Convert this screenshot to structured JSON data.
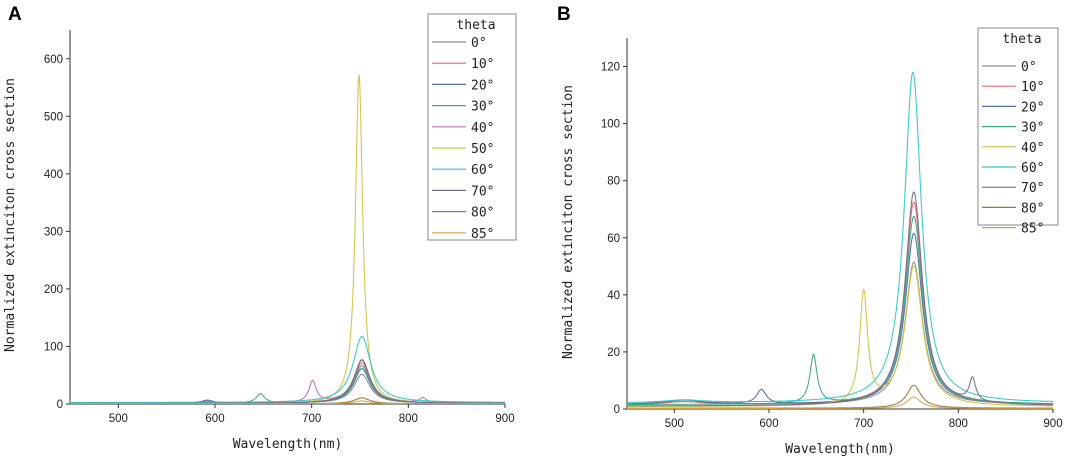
{
  "chart_data": [
    {
      "panel_label": "A",
      "type": "line",
      "xlabel": "Wavelength(nm)",
      "ylabel": "Normalized extinciton cross section",
      "xlim": [
        450,
        900
      ],
      "ylim": [
        0,
        650
      ],
      "xticks": [
        500,
        600,
        700,
        800,
        900
      ],
      "yticks": [
        0,
        100,
        200,
        300,
        400,
        500,
        600
      ],
      "legend_title": "theta",
      "legend_position": "top-right",
      "series": [
        {
          "name": "0°",
          "color": "#8c8c8c",
          "base": 1.5,
          "peaks": [
            {
              "x": 752,
              "h": 50,
              "w": 10
            },
            {
              "x": 592,
              "h": 3,
              "w": 7
            }
          ]
        },
        {
          "name": "10°",
          "color": "#e06b6b",
          "base": 1.5,
          "peaks": [
            {
              "x": 752,
              "h": 70,
              "w": 10
            },
            {
              "x": 592,
              "h": 2,
              "w": 7
            }
          ]
        },
        {
          "name": "20°",
          "color": "#4a6f9e",
          "base": 1.5,
          "peaks": [
            {
              "x": 752,
              "h": 60,
              "w": 10
            },
            {
              "x": 592,
              "h": 5,
              "w": 7
            }
          ]
        },
        {
          "name": "30°",
          "color": "#3aa98a",
          "base": 1.5,
          "peaks": [
            {
              "x": 752,
              "h": 65,
              "w": 10
            },
            {
              "x": 647,
              "h": 16,
              "w": 5
            }
          ]
        },
        {
          "name": "40°",
          "color": "#c26fb3",
          "base": 1.5,
          "peaks": [
            {
              "x": 752,
              "h": 74,
              "w": 10
            },
            {
              "x": 701,
              "h": 37,
              "w": 4.5
            },
            {
              "x": 815,
              "h": 8,
              "w": 4
            }
          ]
        },
        {
          "name": "50°",
          "color": "#d1c441",
          "base": 0.5,
          "peaks": [
            {
              "x": 749,
              "h": 572,
              "w": 4.5
            }
          ]
        },
        {
          "name": "60°",
          "color": "#30c9c4",
          "base": 2.5,
          "peaks": [
            {
              "x": 752,
              "h": 115,
              "w": 11
            }
          ]
        },
        {
          "name": "70°",
          "color": "#7a6b80",
          "base": 1,
          "peaks": [
            {
              "x": 752,
              "h": 76,
              "w": 10
            }
          ]
        },
        {
          "name": "80°",
          "color": "#8a8230",
          "base": 0.5,
          "peaks": [
            {
              "x": 752,
              "h": 10,
              "w": 10
            }
          ]
        },
        {
          "name": "85°",
          "color": "#e3a04a",
          "base": 0.3,
          "peaks": [
            {
              "x": 752,
              "h": 5,
              "w": 10
            }
          ]
        }
      ]
    },
    {
      "panel_label": "B",
      "type": "line",
      "xlabel": "Wavelength(nm)",
      "ylabel": "Normalized extinciton cross section",
      "xlim": [
        450,
        900
      ],
      "ylim": [
        0,
        130
      ],
      "xticks": [
        500,
        600,
        700,
        800,
        900
      ],
      "yticks": [
        0,
        20,
        40,
        60,
        80,
        100,
        120
      ],
      "legend_title": "theta",
      "legend_position": "top-right",
      "series": [
        {
          "name": "0°",
          "color": "#8c8c8c",
          "base": 1.5,
          "peaks": [
            {
              "x": 753,
              "h": 50,
              "w": 11
            },
            {
              "x": 510,
              "h": 1,
              "w": 25
            }
          ]
        },
        {
          "name": "10°",
          "color": "#e06b6b",
          "base": 1.5,
          "peaks": [
            {
              "x": 753,
              "h": 71,
              "w": 11
            },
            {
              "x": 510,
              "h": 1,
              "w": 25
            }
          ]
        },
        {
          "name": "20°",
          "color": "#4a6f9e",
          "base": 1.5,
          "peaks": [
            {
              "x": 753,
              "h": 60,
              "w": 11
            },
            {
              "x": 592,
              "h": 5,
              "w": 6
            },
            {
              "x": 510,
              "h": 1.5,
              "w": 25
            }
          ]
        },
        {
          "name": "30°",
          "color": "#3aa98a",
          "base": 1.5,
          "peaks": [
            {
              "x": 753,
              "h": 66,
              "w": 11
            },
            {
              "x": 647,
              "h": 17,
              "w": 4.5
            }
          ]
        },
        {
          "name": "40°",
          "color": "#d1c441",
          "base": 0.8,
          "peaks": [
            {
              "x": 700,
              "h": 39,
              "w": 5
            },
            {
              "x": 753,
              "h": 49,
              "w": 11
            }
          ]
        },
        {
          "name": "60°",
          "color": "#30c9c4",
          "base": 2,
          "peaks": [
            {
              "x": 752,
              "h": 116,
              "w": 11
            },
            {
              "x": 510,
              "h": 1,
              "w": 25
            }
          ]
        },
        {
          "name": "70°",
          "color": "#7a6b80",
          "base": 1,
          "peaks": [
            {
              "x": 753,
              "h": 75,
              "w": 11
            },
            {
              "x": 815,
              "h": 8,
              "w": 4
            }
          ]
        },
        {
          "name": "80°",
          "color": "#8a8230",
          "base": 0.3,
          "peaks": [
            {
              "x": 753,
              "h": 8,
              "w": 9
            }
          ]
        },
        {
          "name": "85°",
          "color": "#e3a04a",
          "base": 0.2,
          "peaks": [
            {
              "x": 753,
              "h": 4,
              "w": 9
            }
          ]
        }
      ]
    }
  ]
}
